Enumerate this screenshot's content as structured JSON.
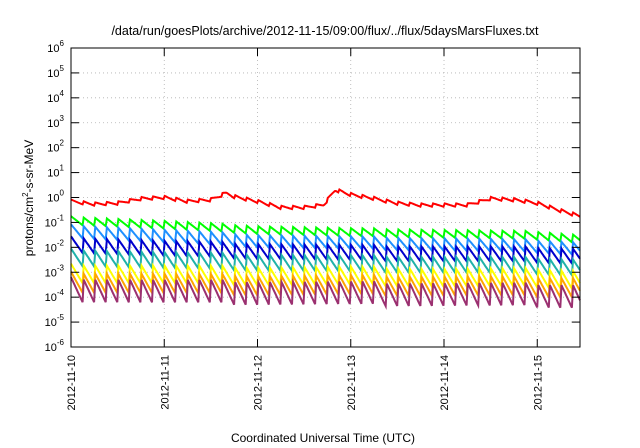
{
  "chart_data": {
    "type": "line",
    "title": "/data/run/goesPlots/archive/2012-11-15/09:00/flux/../flux/5daysMarsFluxes.txt",
    "xlabel": "Coordinated Universal Time (UTC)",
    "ylabel": "protons/cm2-s-sr-MeV",
    "ylabel_parts": {
      "base": "protons/cm",
      "sup": "2",
      "rest": "-s-sr-MeV"
    },
    "y_scale": "log",
    "ylim": [
      1e-06,
      1000000.0
    ],
    "xlim": [
      "2012-11-10 00:00",
      "2012-11-15 11:00"
    ],
    "grid": true,
    "legend": "none",
    "x_ticks": [
      "2012-11-10",
      "2012-11-11",
      "2012-11-12",
      "2012-11-13",
      "2012-11-14",
      "2012-11-15"
    ],
    "y_ticks": [
      {
        "base": "10",
        "exp": "6"
      },
      {
        "base": "10",
        "exp": "5"
      },
      {
        "base": "10",
        "exp": "4"
      },
      {
        "base": "10",
        "exp": "3"
      },
      {
        "base": "10",
        "exp": "2"
      },
      {
        "base": "10",
        "exp": "1"
      },
      {
        "base": "10",
        "exp": "0"
      },
      {
        "base": "10",
        "exp": "-1"
      },
      {
        "base": "10",
        "exp": "-2"
      },
      {
        "base": "10",
        "exp": "-3"
      },
      {
        "base": "10",
        "exp": "-4"
      },
      {
        "base": "10",
        "exp": "-5"
      },
      {
        "base": "10",
        "exp": "-6"
      }
    ],
    "sawtooth_period_hours": 3,
    "series": [
      {
        "color": "#ff0000",
        "width": 2,
        "sawtooth_ratio": 1.4,
        "x": [
          "2012-11-10 00:00",
          "2012-11-10 06:00",
          "2012-11-10 12:00",
          "2012-11-10 18:00",
          "2012-11-11 00:00",
          "2012-11-11 06:00",
          "2012-11-11 12:00",
          "2012-11-11 16:00",
          "2012-11-11 18:00",
          "2012-11-12 00:00",
          "2012-11-12 06:00",
          "2012-11-12 12:00",
          "2012-11-12 17:00",
          "2012-11-12 20:00",
          "2012-11-13 00:00",
          "2012-11-13 06:00",
          "2012-11-13 12:00",
          "2012-11-13 18:00",
          "2012-11-14 00:00",
          "2012-11-14 06:00",
          "2012-11-14 12:00",
          "2012-11-14 18:00",
          "2012-11-15 00:00",
          "2012-11-15 06:00",
          "2012-11-15 11:00"
        ],
        "y": [
          0.7,
          0.55,
          0.6,
          0.9,
          1.0,
          0.7,
          0.8,
          1.5,
          1.1,
          0.7,
          0.4,
          0.4,
          0.5,
          2.0,
          1.3,
          0.9,
          0.6,
          0.5,
          0.5,
          0.5,
          0.9,
          0.8,
          0.6,
          0.3,
          0.18
        ]
      },
      {
        "color": "#00ff00",
        "width": 2,
        "sawtooth_ratio": 2.2,
        "x": [
          "2012-11-10 00:00",
          "2012-11-11 00:00",
          "2012-11-12 00:00",
          "2012-11-13 00:00",
          "2012-11-14 00:00",
          "2012-11-15 00:00",
          "2012-11-15 11:00"
        ],
        "y": [
          0.12,
          0.08,
          0.05,
          0.04,
          0.035,
          0.03,
          0.022
        ]
      },
      {
        "color": "#1e90ff",
        "width": 2,
        "sawtooth_ratio": 3.5,
        "x": [
          "2012-11-10 00:00",
          "2012-11-11 00:00",
          "2012-11-12 00:00",
          "2012-11-13 00:00",
          "2012-11-14 00:00",
          "2012-11-15 00:00",
          "2012-11-15 11:00"
        ],
        "y": [
          0.045,
          0.028,
          0.018,
          0.015,
          0.013,
          0.011,
          0.009
        ]
      },
      {
        "color": "#0000cd",
        "width": 2,
        "sawtooth_ratio": 4.5,
        "x": [
          "2012-11-10 00:00",
          "2012-11-11 00:00",
          "2012-11-12 00:00",
          "2012-11-13 00:00",
          "2012-11-14 00:00",
          "2012-11-15 00:00",
          "2012-11-15 11:00"
        ],
        "y": [
          0.013,
          0.009,
          0.007,
          0.006,
          0.0055,
          0.005,
          0.0045
        ]
      },
      {
        "color": "#20b2aa",
        "width": 2,
        "sawtooth_ratio": 5,
        "x": [
          "2012-11-10 00:00",
          "2012-11-11 00:00",
          "2012-11-12 00:00",
          "2012-11-13 00:00",
          "2012-11-14 00:00",
          "2012-11-15 00:00",
          "2012-11-15 11:00"
        ],
        "y": [
          0.004,
          0.003,
          0.0025,
          0.0022,
          0.002,
          0.0018,
          0.0016
        ]
      },
      {
        "color": "#ffff00",
        "width": 2,
        "sawtooth_ratio": 6,
        "x": [
          "2012-11-10 00:00",
          "2012-11-11 00:00",
          "2012-11-12 00:00",
          "2012-11-13 00:00",
          "2012-11-14 00:00",
          "2012-11-15 00:00",
          "2012-11-15 11:00"
        ],
        "y": [
          0.0009,
          0.0008,
          0.0007,
          0.0007,
          0.0006,
          0.0006,
          0.0005
        ]
      },
      {
        "color": "#ffa500",
        "width": 2,
        "sawtooth_ratio": 7,
        "x": [
          "2012-11-10 00:00",
          "2012-11-11 00:00",
          "2012-11-12 00:00",
          "2012-11-13 00:00",
          "2012-11-14 00:00",
          "2012-11-15 00:00",
          "2012-11-15 11:00"
        ],
        "y": [
          0.0004,
          0.00035,
          0.0003,
          0.0003,
          0.00028,
          0.00026,
          0.00025
        ]
      },
      {
        "color": "#9b3070",
        "width": 2,
        "sawtooth_ratio": 10,
        "x": [
          "2012-11-10 00:00",
          "2012-11-11 00:00",
          "2012-11-12 00:00",
          "2012-11-13 00:00",
          "2012-11-14 00:00",
          "2012-11-15 00:00",
          "2012-11-15 11:00"
        ],
        "y": [
          0.0002,
          0.00017,
          0.00015,
          0.00014,
          0.00013,
          0.00012,
          0.00011
        ]
      }
    ]
  }
}
